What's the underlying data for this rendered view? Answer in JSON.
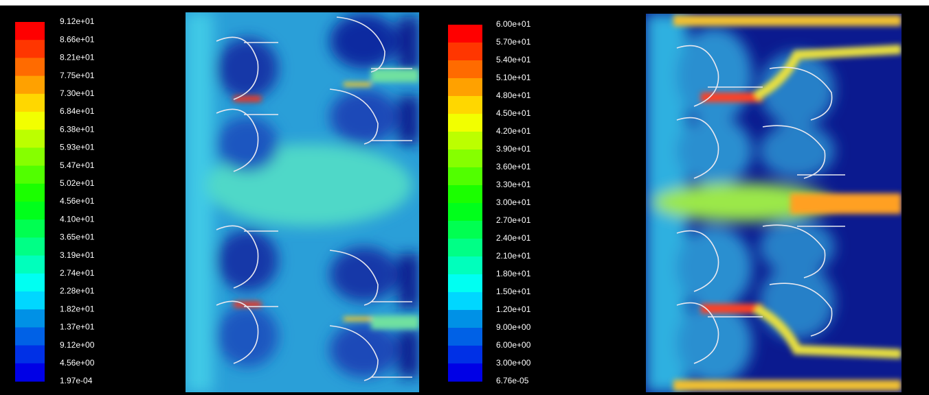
{
  "panels": [
    {
      "colorbar": {
        "labels": [
          "9.12e+01",
          "8.66e+01",
          "8.21e+01",
          "7.75e+01",
          "7.30e+01",
          "6.84e+01",
          "6.38e+01",
          "5.93e+01",
          "5.47e+01",
          "5.02e+01",
          "4.56e+01",
          "4.10e+01",
          "3.65e+01",
          "3.19e+01",
          "2.74e+01",
          "2.28e+01",
          "1.82e+01",
          "1.37e+01",
          "9.12e+00",
          "4.56e+00",
          "1.97e-04"
        ]
      }
    },
    {
      "colorbar": {
        "labels": [
          "6.00e+01",
          "5.70e+01",
          "5.40e+01",
          "5.10e+01",
          "4.80e+01",
          "4.50e+01",
          "4.20e+01",
          "3.90e+01",
          "3.60e+01",
          "3.30e+01",
          "3.00e+01",
          "2.70e+01",
          "2.40e+01",
          "2.10e+01",
          "1.80e+01",
          "1.50e+01",
          "1.20e+01",
          "9.00e+00",
          "6.00e+00",
          "3.00e+00",
          "6.76e-05"
        ]
      }
    }
  ]
}
